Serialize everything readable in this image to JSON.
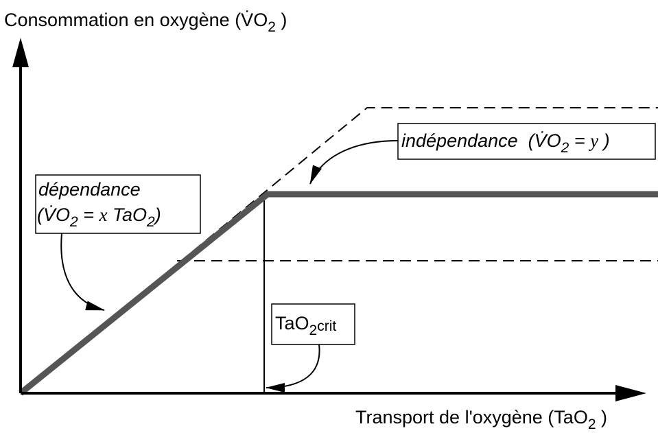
{
  "axes": {
    "y_label": [
      "Consommation en oxygène (V̇O",
      "2",
      " )"
    ],
    "x_label": [
      "Transport de l'oxygène (TaO",
      "2",
      " )"
    ]
  },
  "labels": {
    "dependance": {
      "line1": "dépendance",
      "line2": [
        "(V̇O",
        "2",
        " = ",
        "x",
        " TaO",
        "2",
        ")"
      ]
    },
    "independance": [
      "indépendance  (V̇O",
      "2",
      " = ",
      "y",
      " )"
    ],
    "critical": [
      "TaO",
      "2",
      "crit"
    ]
  }
}
